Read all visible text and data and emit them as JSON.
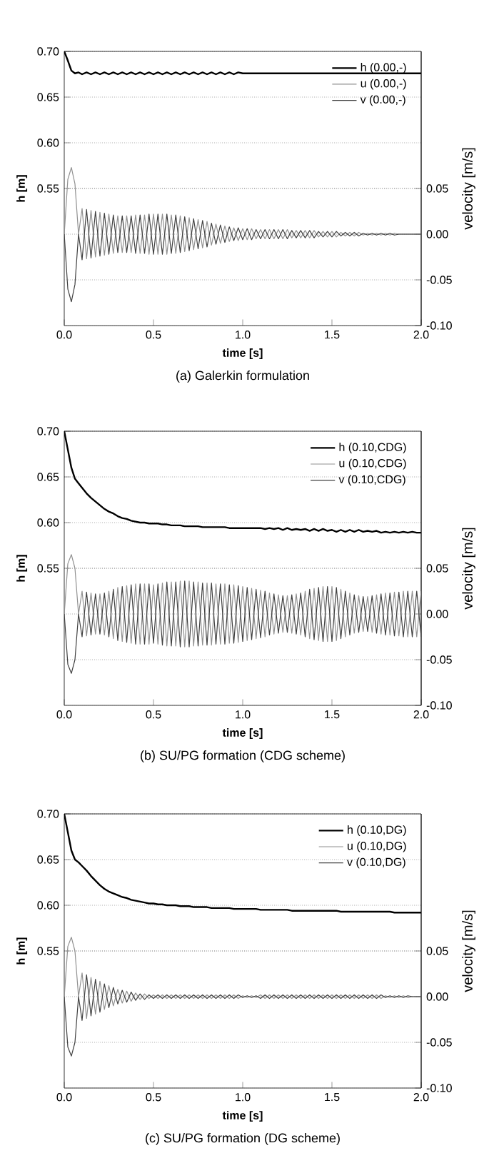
{
  "chart_data": [
    {
      "type": "line",
      "title": "(a) Galerkin formulation",
      "xlabel": "time [s]",
      "ylabel": "h [m]",
      "y2label": "velocity [m/s]",
      "xlim": [
        0,
        2
      ],
      "xticks": [
        {
          "value": 0,
          "label": "0.0"
        },
        {
          "value": 0.5,
          "label": "0.5"
        },
        {
          "value": 1,
          "label": "1.0"
        },
        {
          "value": 1.5,
          "label": "1.5"
        },
        {
          "value": 2,
          "label": "2.0"
        }
      ],
      "ylim": [
        0.4,
        0.7
      ],
      "yticks": [
        {
          "value": 0.55,
          "label": "0.55"
        },
        {
          "value": 0.6,
          "label": "0.60"
        },
        {
          "value": 0.65,
          "label": "0.65"
        },
        {
          "value": 0.7,
          "label": "0.70"
        }
      ],
      "y2lim": [
        -0.1,
        0.2
      ],
      "y2ticks": [
        {
          "value": -0.1,
          "label": "-0.10"
        },
        {
          "value": -0.05,
          "label": "-0.05"
        },
        {
          "value": 0,
          "label": "0.00"
        },
        {
          "value": 0.05,
          "label": "0.05"
        }
      ],
      "grid": "y",
      "legend": "top right",
      "x": [
        0,
        0.02,
        0.04,
        0.06,
        0.08,
        0.1,
        0.125,
        0.15,
        0.175,
        0.2,
        0.225,
        0.25,
        0.275,
        0.3,
        0.325,
        0.35,
        0.375,
        0.4,
        0.425,
        0.45,
        0.475,
        0.5,
        0.525,
        0.55,
        0.575,
        0.6,
        0.625,
        0.65,
        0.675,
        0.7,
        0.725,
        0.75,
        0.775,
        0.8,
        0.825,
        0.85,
        0.875,
        0.9,
        0.925,
        0.95,
        0.975,
        1,
        1.025,
        1.05,
        1.075,
        1.1,
        1.125,
        1.15,
        1.175,
        1.2,
        1.225,
        1.25,
        1.275,
        1.3,
        1.325,
        1.35,
        1.375,
        1.4,
        1.425,
        1.45,
        1.475,
        1.5,
        1.525,
        1.55,
        1.575,
        1.6,
        1.625,
        1.65,
        1.675,
        1.7,
        1.725,
        1.75,
        1.775,
        1.8,
        1.825,
        1.85,
        1.875,
        1.9,
        1.925,
        1.95,
        1.975,
        2
      ],
      "series": [
        {
          "name": "h (0.00,-)",
          "color": "#000000",
          "values": [
            0.7,
            0.69,
            0.679,
            0.676,
            0.677,
            0.675,
            0.677,
            0.675,
            0.677,
            0.675,
            0.677,
            0.675,
            0.677,
            0.675,
            0.677,
            0.675,
            0.677,
            0.675,
            0.677,
            0.675,
            0.677,
            0.675,
            0.677,
            0.675,
            0.677,
            0.675,
            0.677,
            0.675,
            0.677,
            0.675,
            0.677,
            0.675,
            0.677,
            0.675,
            0.677,
            0.675,
            0.677,
            0.675,
            0.677,
            0.675,
            0.677,
            0.676,
            0.676,
            0.676,
            0.676,
            0.676,
            0.676,
            0.676,
            0.676,
            0.676,
            0.676,
            0.676,
            0.676,
            0.676,
            0.676,
            0.676,
            0.676,
            0.676,
            0.676,
            0.676,
            0.676,
            0.676,
            0.676,
            0.676,
            0.676,
            0.676,
            0.676,
            0.676,
            0.676,
            0.676,
            0.676,
            0.676,
            0.676,
            0.676,
            0.676,
            0.676,
            0.676,
            0.676,
            0.676,
            0.676,
            0.676,
            0.676
          ]
        },
        {
          "name": "u (0.00,-)",
          "color": "#909090",
          "axis": "y2",
          "values": [
            0,
            0.06,
            0.073,
            0.055,
            0,
            0.028,
            -0.027,
            0.026,
            -0.025,
            0.024,
            -0.023,
            0.022,
            -0.021,
            0.02,
            -0.02,
            0.02,
            -0.02,
            0.021,
            -0.021,
            0.021,
            -0.022,
            0.022,
            -0.022,
            0.022,
            -0.022,
            0.021,
            -0.021,
            0.02,
            -0.019,
            0.018,
            -0.017,
            0.016,
            -0.015,
            0.014,
            -0.012,
            0.011,
            -0.01,
            0.009,
            -0.008,
            0.007,
            -0.007,
            0.006,
            -0.006,
            0.006,
            -0.005,
            0.005,
            -0.005,
            0.005,
            -0.005,
            0.005,
            -0.005,
            0.005,
            -0.004,
            0.004,
            -0.004,
            0.004,
            -0.004,
            0.004,
            -0.003,
            0.003,
            -0.003,
            0.003,
            -0.003,
            0.002,
            -0.002,
            0.002,
            -0.002,
            0.002,
            -0.001,
            0.001,
            -0.001,
            0.001,
            -0.001,
            0.001,
            -0.001,
            0.001,
            0,
            0,
            0,
            0,
            0,
            0
          ]
        },
        {
          "name": "v (0.00,-)",
          "color": "#404040",
          "axis": "y2",
          "values": [
            0,
            -0.06,
            -0.074,
            -0.055,
            0,
            -0.028,
            0.027,
            -0.026,
            0.025,
            -0.024,
            0.023,
            -0.022,
            0.021,
            -0.02,
            0.02,
            -0.02,
            0.02,
            -0.021,
            0.021,
            -0.021,
            0.022,
            -0.022,
            0.022,
            -0.022,
            0.022,
            -0.021,
            0.021,
            -0.02,
            0.019,
            -0.018,
            0.017,
            -0.016,
            0.015,
            -0.014,
            0.012,
            -0.011,
            0.01,
            -0.009,
            0.008,
            -0.007,
            0.007,
            -0.006,
            0.006,
            -0.006,
            0.005,
            -0.005,
            0.005,
            -0.005,
            0.005,
            -0.005,
            0.005,
            -0.005,
            0.004,
            -0.004,
            0.004,
            -0.004,
            0.004,
            -0.004,
            0.003,
            -0.003,
            0.003,
            -0.003,
            0.003,
            -0.002,
            0.002,
            -0.002,
            0.002,
            -0.002,
            0.001,
            -0.001,
            0.001,
            -0.001,
            0.001,
            -0.001,
            0.001,
            -0.001,
            0,
            0,
            0,
            0,
            0,
            0
          ]
        }
      ]
    },
    {
      "type": "line",
      "title": "(b) SU/PG formation (CDG scheme)",
      "xlabel": "time [s]",
      "ylabel": "h [m]",
      "y2label": "velocity [m/s]",
      "xlim": [
        0,
        2
      ],
      "xticks": [
        {
          "value": 0,
          "label": "0.0"
        },
        {
          "value": 0.5,
          "label": "0.5"
        },
        {
          "value": 1,
          "label": "1.0"
        },
        {
          "value": 1.5,
          "label": "1.5"
        },
        {
          "value": 2,
          "label": "2.0"
        }
      ],
      "ylim": [
        0.4,
        0.7
      ],
      "yticks": [
        {
          "value": 0.55,
          "label": "0.55"
        },
        {
          "value": 0.6,
          "label": "0.60"
        },
        {
          "value": 0.65,
          "label": "0.65"
        },
        {
          "value": 0.7,
          "label": "0.70"
        }
      ],
      "y2lim": [
        -0.1,
        0.2
      ],
      "y2ticks": [
        {
          "value": -0.1,
          "label": "-0.10"
        },
        {
          "value": -0.05,
          "label": "-0.05"
        },
        {
          "value": 0,
          "label": "0.00"
        },
        {
          "value": 0.05,
          "label": "0.05"
        }
      ],
      "grid": "y",
      "legend": "top right",
      "x": [
        0,
        0.02,
        0.04,
        0.06,
        0.08,
        0.1,
        0.125,
        0.15,
        0.175,
        0.2,
        0.225,
        0.25,
        0.275,
        0.3,
        0.325,
        0.35,
        0.375,
        0.4,
        0.425,
        0.45,
        0.475,
        0.5,
        0.525,
        0.55,
        0.575,
        0.6,
        0.625,
        0.65,
        0.675,
        0.7,
        0.725,
        0.75,
        0.775,
        0.8,
        0.825,
        0.85,
        0.875,
        0.9,
        0.925,
        0.95,
        0.975,
        1,
        1.025,
        1.05,
        1.075,
        1.1,
        1.125,
        1.15,
        1.175,
        1.2,
        1.225,
        1.25,
        1.275,
        1.3,
        1.325,
        1.35,
        1.375,
        1.4,
        1.425,
        1.45,
        1.475,
        1.5,
        1.525,
        1.55,
        1.575,
        1.6,
        1.625,
        1.65,
        1.675,
        1.7,
        1.725,
        1.75,
        1.775,
        1.8,
        1.825,
        1.85,
        1.875,
        1.9,
        1.925,
        1.95,
        1.975,
        2
      ],
      "series": [
        {
          "name": "h (0.10,CDG)",
          "color": "#000000",
          "values": [
            0.7,
            0.68,
            0.66,
            0.648,
            0.643,
            0.638,
            0.632,
            0.627,
            0.623,
            0.619,
            0.615,
            0.612,
            0.61,
            0.607,
            0.605,
            0.604,
            0.602,
            0.601,
            0.6,
            0.6,
            0.599,
            0.599,
            0.599,
            0.598,
            0.598,
            0.597,
            0.597,
            0.597,
            0.596,
            0.596,
            0.596,
            0.596,
            0.595,
            0.595,
            0.595,
            0.595,
            0.595,
            0.595,
            0.594,
            0.594,
            0.594,
            0.594,
            0.594,
            0.594,
            0.594,
            0.594,
            0.593,
            0.594,
            0.593,
            0.594,
            0.592,
            0.594,
            0.592,
            0.593,
            0.592,
            0.593,
            0.591,
            0.593,
            0.591,
            0.593,
            0.591,
            0.592,
            0.59,
            0.592,
            0.59,
            0.592,
            0.59,
            0.592,
            0.59,
            0.591,
            0.59,
            0.591,
            0.589,
            0.59,
            0.589,
            0.59,
            0.589,
            0.59,
            0.589,
            0.59,
            0.589,
            0.589
          ]
        },
        {
          "name": "u (0.10,CDG)",
          "color": "#909090",
          "axis": "y2",
          "values": [
            0,
            0.055,
            0.065,
            0.05,
            0,
            0.025,
            -0.024,
            0.023,
            -0.022,
            0.022,
            -0.023,
            0.025,
            -0.027,
            0.029,
            -0.03,
            0.031,
            -0.032,
            0.033,
            -0.033,
            0.033,
            -0.033,
            0.032,
            -0.033,
            0.034,
            -0.035,
            0.035,
            -0.035,
            0.036,
            -0.036,
            0.036,
            -0.035,
            0.035,
            -0.034,
            0.034,
            -0.034,
            0.033,
            -0.033,
            0.033,
            -0.032,
            0.032,
            -0.031,
            0.03,
            -0.029,
            0.028,
            -0.027,
            0.026,
            -0.025,
            0.023,
            -0.022,
            0.021,
            -0.02,
            0.02,
            -0.021,
            0.022,
            -0.023,
            0.025,
            -0.027,
            0.028,
            -0.029,
            0.03,
            -0.03,
            0.03,
            -0.029,
            0.027,
            -0.025,
            0.023,
            -0.021,
            0.02,
            -0.019,
            0.019,
            -0.02,
            0.021,
            -0.022,
            0.023,
            -0.023,
            0.024,
            -0.024,
            0.025,
            -0.025,
            0.025,
            -0.025,
            0.025
          ]
        },
        {
          "name": "v (0.10,CDG)",
          "color": "#404040",
          "axis": "y2",
          "values": [
            0,
            -0.055,
            -0.065,
            -0.05,
            0,
            -0.025,
            0.024,
            -0.023,
            0.022,
            -0.022,
            0.023,
            -0.025,
            0.027,
            -0.029,
            0.03,
            -0.031,
            0.032,
            -0.033,
            0.033,
            -0.033,
            0.033,
            -0.032,
            0.033,
            -0.034,
            0.035,
            -0.035,
            0.035,
            -0.036,
            0.036,
            -0.036,
            0.035,
            -0.035,
            0.034,
            -0.034,
            0.034,
            -0.033,
            0.033,
            -0.033,
            0.032,
            -0.032,
            0.031,
            -0.03,
            0.029,
            -0.028,
            0.027,
            -0.026,
            0.025,
            -0.023,
            0.022,
            -0.021,
            0.02,
            -0.02,
            0.021,
            -0.022,
            0.023,
            -0.025,
            0.027,
            -0.028,
            0.029,
            -0.03,
            0.03,
            -0.03,
            0.029,
            -0.027,
            0.025,
            -0.023,
            0.021,
            -0.02,
            0.019,
            -0.019,
            0.02,
            -0.021,
            0.022,
            -0.023,
            0.023,
            -0.024,
            0.024,
            -0.025,
            0.025,
            -0.025,
            0.025,
            -0.025
          ]
        }
      ]
    },
    {
      "type": "line",
      "title": "(c) SU/PG formation (DG scheme)",
      "xlabel": "time [s]",
      "ylabel": "h [m]",
      "y2label": "velocity [m/s]",
      "xlim": [
        0,
        2
      ],
      "xticks": [
        {
          "value": 0,
          "label": "0.0"
        },
        {
          "value": 0.5,
          "label": "0.5"
        },
        {
          "value": 1,
          "label": "1.0"
        },
        {
          "value": 1.5,
          "label": "1.5"
        },
        {
          "value": 2,
          "label": "2.0"
        }
      ],
      "ylim": [
        0.4,
        0.7
      ],
      "yticks": [
        {
          "value": 0.55,
          "label": "0.55"
        },
        {
          "value": 0.6,
          "label": "0.60"
        },
        {
          "value": 0.65,
          "label": "0.65"
        },
        {
          "value": 0.7,
          "label": "0.70"
        }
      ],
      "y2lim": [
        -0.1,
        0.2
      ],
      "y2ticks": [
        {
          "value": -0.1,
          "label": "-0.10"
        },
        {
          "value": -0.05,
          "label": "-0.05"
        },
        {
          "value": 0,
          "label": "0.00"
        },
        {
          "value": 0.05,
          "label": "0.05"
        }
      ],
      "grid": "y",
      "legend": "top right",
      "x": [
        0,
        0.02,
        0.04,
        0.06,
        0.08,
        0.1,
        0.125,
        0.15,
        0.175,
        0.2,
        0.225,
        0.25,
        0.275,
        0.3,
        0.325,
        0.35,
        0.375,
        0.4,
        0.425,
        0.45,
        0.475,
        0.5,
        0.525,
        0.55,
        0.575,
        0.6,
        0.625,
        0.65,
        0.675,
        0.7,
        0.725,
        0.75,
        0.775,
        0.8,
        0.825,
        0.85,
        0.875,
        0.9,
        0.925,
        0.95,
        0.975,
        1,
        1.025,
        1.05,
        1.075,
        1.1,
        1.125,
        1.15,
        1.175,
        1.2,
        1.225,
        1.25,
        1.275,
        1.3,
        1.325,
        1.35,
        1.375,
        1.4,
        1.425,
        1.45,
        1.475,
        1.5,
        1.525,
        1.55,
        1.575,
        1.6,
        1.625,
        1.65,
        1.675,
        1.7,
        1.725,
        1.75,
        1.775,
        1.8,
        1.825,
        1.85,
        1.875,
        1.9,
        1.925,
        1.95,
        1.975,
        2
      ],
      "series": [
        {
          "name": "h (0.10,DG)",
          "color": "#000000",
          "values": [
            0.7,
            0.68,
            0.66,
            0.65,
            0.647,
            0.643,
            0.638,
            0.632,
            0.627,
            0.622,
            0.618,
            0.615,
            0.613,
            0.611,
            0.609,
            0.608,
            0.606,
            0.605,
            0.604,
            0.603,
            0.602,
            0.602,
            0.601,
            0.601,
            0.6,
            0.6,
            0.6,
            0.599,
            0.599,
            0.599,
            0.598,
            0.598,
            0.598,
            0.598,
            0.597,
            0.597,
            0.597,
            0.597,
            0.597,
            0.596,
            0.596,
            0.596,
            0.596,
            0.596,
            0.596,
            0.595,
            0.595,
            0.595,
            0.595,
            0.595,
            0.595,
            0.595,
            0.594,
            0.594,
            0.594,
            0.594,
            0.594,
            0.594,
            0.594,
            0.594,
            0.594,
            0.594,
            0.594,
            0.593,
            0.593,
            0.593,
            0.593,
            0.593,
            0.593,
            0.593,
            0.593,
            0.593,
            0.593,
            0.593,
            0.593,
            0.592,
            0.592,
            0.592,
            0.592,
            0.592,
            0.592,
            0.592
          ]
        },
        {
          "name": "u (0.10,DG)",
          "color": "#909090",
          "axis": "y2",
          "values": [
            0,
            0.055,
            0.065,
            0.05,
            0,
            0.026,
            -0.024,
            0.021,
            -0.019,
            0.017,
            -0.014,
            0.012,
            -0.01,
            0.008,
            -0.007,
            0.006,
            -0.005,
            0.004,
            -0.003,
            0.003,
            -0.002,
            0.002,
            -0.002,
            0.002,
            -0.002,
            0.002,
            -0.002,
            0.002,
            -0.002,
            0.002,
            -0.002,
            0.002,
            -0.002,
            0.002,
            -0.002,
            0.002,
            -0.002,
            0.002,
            -0.002,
            0.002,
            -0.002,
            0.001,
            -0.001,
            0.001,
            -0.001,
            0.002,
            -0.002,
            0.002,
            -0.002,
            0.002,
            -0.002,
            0.002,
            -0.002,
            0.002,
            -0.002,
            0.002,
            -0.002,
            0.002,
            -0.002,
            0.002,
            -0.002,
            0.002,
            -0.002,
            0.002,
            -0.002,
            0.002,
            -0.002,
            0.002,
            -0.002,
            0.002,
            -0.002,
            0.002,
            -0.002,
            0.001,
            -0.001,
            0.001,
            -0.001,
            0.001,
            -0.001,
            0,
            0,
            0
          ]
        },
        {
          "name": "v (0.10,DG)",
          "color": "#404040",
          "axis": "y2",
          "values": [
            0,
            -0.055,
            -0.065,
            -0.05,
            0,
            -0.026,
            0.024,
            -0.021,
            0.019,
            -0.017,
            0.014,
            -0.012,
            0.01,
            -0.008,
            0.007,
            -0.006,
            0.005,
            -0.004,
            0.003,
            -0.003,
            0.002,
            -0.002,
            0.002,
            -0.002,
            0.002,
            -0.002,
            0.002,
            -0.002,
            0.002,
            -0.002,
            0.002,
            -0.002,
            0.002,
            -0.002,
            0.002,
            -0.002,
            0.002,
            -0.002,
            0.002,
            -0.002,
            0.002,
            -0.001,
            0.001,
            -0.001,
            0.001,
            -0.002,
            0.002,
            -0.002,
            0.002,
            -0.002,
            0.002,
            -0.002,
            0.002,
            -0.002,
            0.002,
            -0.002,
            0.002,
            -0.002,
            0.002,
            -0.002,
            0.002,
            -0.002,
            0.002,
            -0.002,
            0.002,
            -0.002,
            0.002,
            -0.002,
            0.002,
            -0.002,
            0.002,
            -0.002,
            0.002,
            -0.001,
            0.001,
            -0.001,
            0.001,
            -0.001,
            0.001,
            0,
            0,
            0
          ]
        }
      ]
    }
  ]
}
